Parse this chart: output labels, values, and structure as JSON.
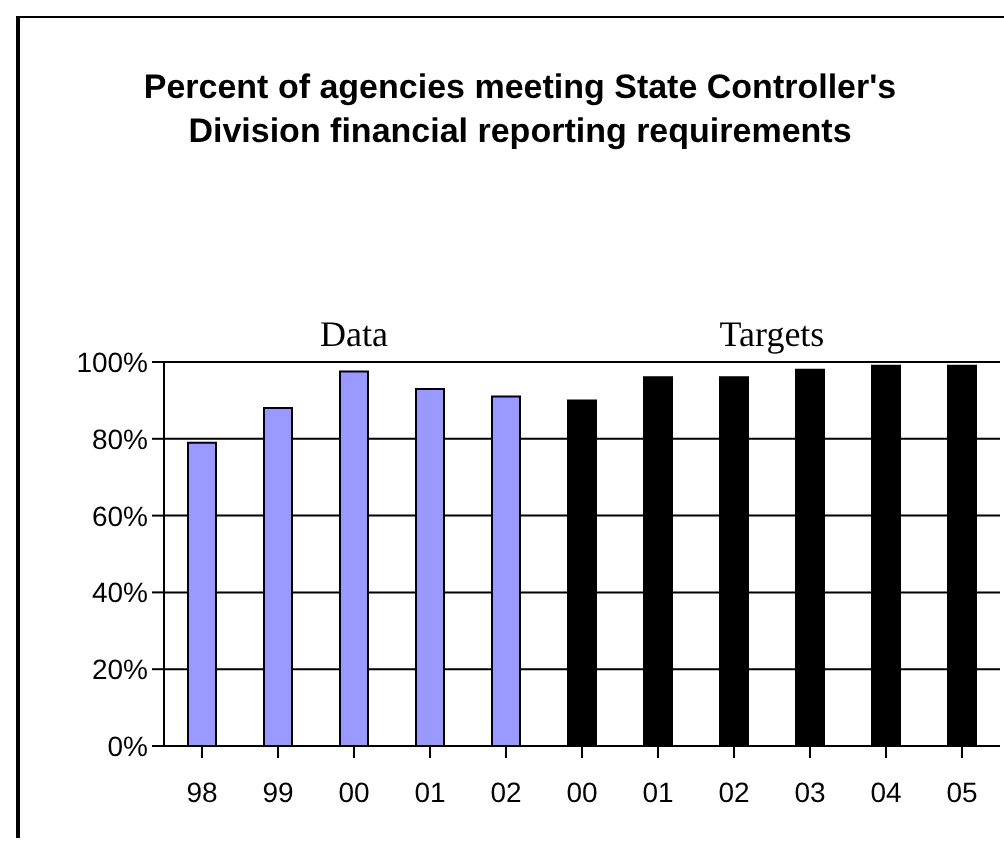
{
  "chart_data": {
    "type": "bar",
    "title": "Percent of agencies meeting State Controller's Division financial reporting requirements",
    "categories": [
      "98",
      "99",
      "00",
      "01",
      "02",
      "00",
      "01",
      "02",
      "03",
      "04",
      "05"
    ],
    "series": [
      {
        "name": "Data",
        "color": "#9999ff",
        "values": [
          79,
          88,
          97.5,
          93,
          91,
          null,
          null,
          null,
          null,
          null,
          null
        ]
      },
      {
        "name": "Targets",
        "color": "#000000",
        "values": [
          null,
          null,
          null,
          null,
          null,
          90,
          96,
          96,
          98,
          99,
          99
        ]
      }
    ],
    "ylim": [
      0,
      100
    ],
    "yticks": [
      {
        "value": 0,
        "label": "0%"
      },
      {
        "value": 20,
        "label": "20%"
      },
      {
        "value": 40,
        "label": "40%"
      },
      {
        "value": 60,
        "label": "60%"
      },
      {
        "value": 80,
        "label": "80%"
      },
      {
        "value": 100,
        "label": "100%"
      }
    ],
    "grid": "y",
    "legend": false
  }
}
